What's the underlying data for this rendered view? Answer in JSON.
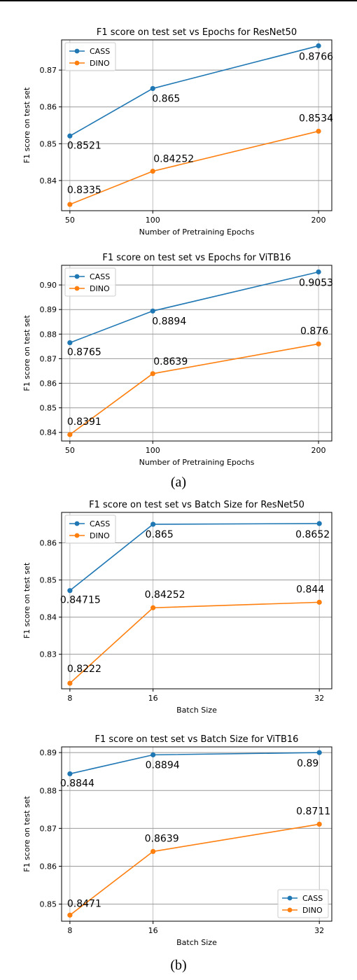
{
  "figure": {
    "caption_a": "(a)",
    "caption_b": "(b)",
    "colors": {
      "cass": "#1f77b4",
      "dino": "#ff7f0e",
      "grid": "#b0b0b0",
      "grid_strong": "#999999",
      "axes": "#000000"
    }
  },
  "chart_data": [
    {
      "type": "line",
      "title": "F1 score on test set  vs Epochs for ResNet50",
      "xlabel": "Number of Pretraining Epochs",
      "ylabel": "F1 score on test set",
      "x": [
        50,
        100,
        200
      ],
      "xticks": [
        "50",
        "100",
        "200"
      ],
      "xlim": [
        45,
        208
      ],
      "ylim": [
        0.8318,
        0.8782
      ],
      "yticks": [
        0.84,
        0.85,
        0.86,
        0.87
      ],
      "ytick_labels": [
        "0.84",
        "0.85",
        "0.86",
        "0.87"
      ],
      "grid": true,
      "legend": "top-left",
      "series": [
        {
          "name": "CASS",
          "values": [
            0.8521,
            0.865,
            0.8766
          ],
          "labels": [
            "0.8521",
            "0.865",
            "0.8766"
          ]
        },
        {
          "name": "DINO",
          "values": [
            0.8335,
            0.84252,
            0.8534
          ],
          "labels": [
            "0.8335",
            "0.84252",
            "0.8534"
          ]
        }
      ]
    },
    {
      "type": "line",
      "title": "F1 score on test set  vs Epochs for ViTB16",
      "xlabel": "Number of Pretraining Epochs",
      "ylabel": "F1 score on test set",
      "x": [
        50,
        100,
        200
      ],
      "xticks": [
        "50",
        "100",
        "200"
      ],
      "xlim": [
        45,
        208
      ],
      "ylim": [
        0.8365,
        0.908
      ],
      "yticks": [
        0.84,
        0.85,
        0.86,
        0.87,
        0.88,
        0.89,
        0.9
      ],
      "ytick_labels": [
        "0.84",
        "0.85",
        "0.86",
        "0.87",
        "0.88",
        "0.89",
        "0.90"
      ],
      "grid": true,
      "legend": "top-left",
      "series": [
        {
          "name": "CASS",
          "values": [
            0.8765,
            0.8894,
            0.9053
          ],
          "labels": [
            "0.8765",
            "0.8894",
            "0.9053"
          ]
        },
        {
          "name": "DINO",
          "values": [
            0.8391,
            0.8639,
            0.876
          ],
          "labels": [
            "0.8391",
            "0.8639",
            "0.876"
          ]
        }
      ]
    },
    {
      "type": "line",
      "title": "F1 score on test set  vs Batch Size for ResNet50",
      "xlabel": "Batch Size",
      "ylabel": "F1 score on test set",
      "x": [
        8,
        16,
        32
      ],
      "xticks": [
        "8",
        "16",
        "32"
      ],
      "xlim": [
        7.2,
        33.2
      ],
      "ylim": [
        0.8207,
        0.8682
      ],
      "yticks": [
        0.83,
        0.84,
        0.85,
        0.86
      ],
      "ytick_labels": [
        "0.83",
        "0.84",
        "0.85",
        "0.86"
      ],
      "grid": true,
      "legend": "top-left",
      "series": [
        {
          "name": "CASS",
          "values": [
            0.84715,
            0.865,
            0.8652
          ],
          "labels": [
            "0.84715",
            "0.865",
            "0.8652"
          ]
        },
        {
          "name": "DINO",
          "values": [
            0.8222,
            0.84252,
            0.844
          ],
          "labels": [
            "0.8222",
            "0.84252",
            "0.844"
          ]
        }
      ]
    },
    {
      "type": "line",
      "title": "F1 score on test set  vs Batch Size for ViTB16",
      "xlabel": "Batch Size",
      "ylabel": "F1 score on test set",
      "x": [
        8,
        16,
        32
      ],
      "xticks": [
        "8",
        "16",
        "32"
      ],
      "xlim": [
        7.2,
        33.2
      ],
      "ylim": [
        0.8455,
        0.8915
      ],
      "yticks": [
        0.85,
        0.86,
        0.87,
        0.88,
        0.89
      ],
      "ytick_labels": [
        "0.85",
        "0.86",
        "0.87",
        "0.88",
        "0.89"
      ],
      "grid": true,
      "legend": "bottom-right",
      "series": [
        {
          "name": "CASS",
          "values": [
            0.8844,
            0.8894,
            0.89
          ],
          "labels": [
            "0.8844",
            "0.8894",
            "0.89"
          ]
        },
        {
          "name": "DINO",
          "values": [
            0.8471,
            0.8639,
            0.8711
          ],
          "labels": [
            "0.8471",
            "0.8639",
            "0.8711"
          ]
        }
      ]
    }
  ]
}
